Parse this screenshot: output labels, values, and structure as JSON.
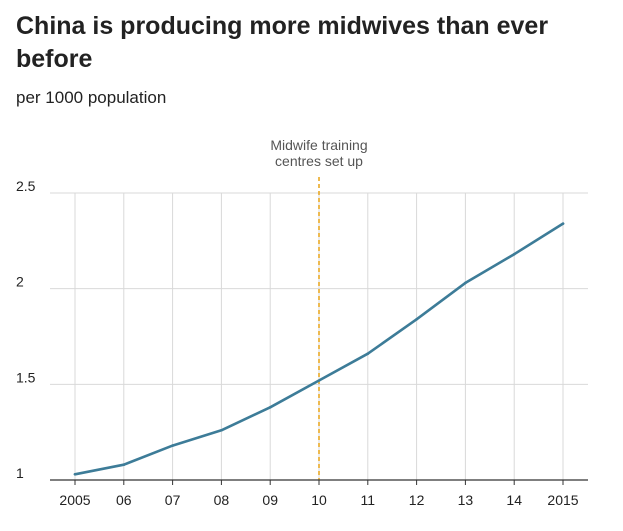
{
  "chart_data": {
    "type": "line",
    "title": "China is producing more midwives than ever before",
    "subtitle": "per 1000 population",
    "x": [
      2005,
      2006,
      2007,
      2008,
      2009,
      2010,
      2011,
      2012,
      2013,
      2014,
      2015
    ],
    "x_tick_labels": [
      "2005",
      "06",
      "07",
      "08",
      "09",
      "10",
      "11",
      "12",
      "13",
      "14",
      "2015"
    ],
    "y_ticks": [
      1,
      1.5,
      2,
      2.5
    ],
    "y_tick_labels": [
      "1",
      "1.5",
      "2",
      "2.5"
    ],
    "ylim": [
      1,
      2.5
    ],
    "xlim": [
      2005,
      2015
    ],
    "grid": true,
    "series": [
      {
        "values": [
          1.03,
          1.08,
          1.18,
          1.26,
          1.38,
          1.52,
          1.66,
          1.84,
          2.03,
          2.18,
          2.34
        ],
        "color": "#3d7c98"
      }
    ],
    "annotations": [
      {
        "x": 2010,
        "text_lines": [
          "Midwife training",
          "centres set up"
        ],
        "color": "#e8a317",
        "style": "dashed"
      }
    ]
  }
}
